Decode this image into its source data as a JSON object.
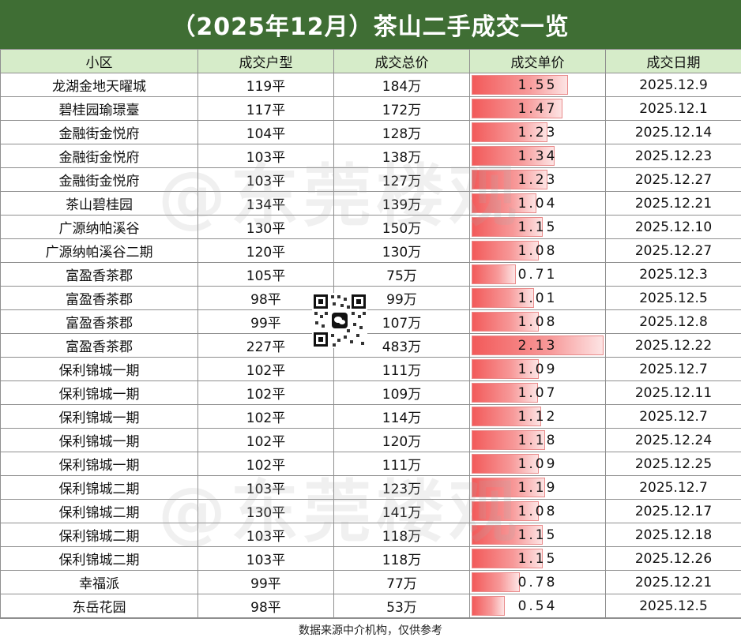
{
  "title": "（2025年12月）茶山二手成交一览",
  "headers": [
    "小区",
    "成交户型",
    "成交总价",
    "成交单价",
    "成交日期"
  ],
  "max_unit_price": 2.13,
  "rows": [
    {
      "community": "龙湖金地天曜城",
      "size": "119平",
      "total": "184万",
      "unit": "1.55",
      "date": "2025.12.9"
    },
    {
      "community": "碧桂园瑜璟臺",
      "size": "117平",
      "total": "172万",
      "unit": "1.47",
      "date": "2025.12.1"
    },
    {
      "community": "金融街金悦府",
      "size": "104平",
      "total": "128万",
      "unit": "1.23",
      "date": "2025.12.14"
    },
    {
      "community": "金融街金悦府",
      "size": "103平",
      "total": "138万",
      "unit": "1.34",
      "date": "2025.12.23"
    },
    {
      "community": "金融街金悦府",
      "size": "103平",
      "total": "127万",
      "unit": "1.23",
      "date": "2025.12.27"
    },
    {
      "community": "茶山碧桂园",
      "size": "134平",
      "total": "139万",
      "unit": "1.04",
      "date": "2025.12.21"
    },
    {
      "community": "广源纳帕溪谷",
      "size": "130平",
      "total": "150万",
      "unit": "1.15",
      "date": "2025.12.10"
    },
    {
      "community": "广源纳帕溪谷二期",
      "size": "120平",
      "total": "130万",
      "unit": "1.08",
      "date": "2025.12.27"
    },
    {
      "community": "富盈香茶郡",
      "size": "105平",
      "total": "75万",
      "unit": "0.71",
      "date": "2025.12.3"
    },
    {
      "community": "富盈香茶郡",
      "size": "98平",
      "total": "99万",
      "unit": "1.01",
      "date": "2025.12.5"
    },
    {
      "community": "富盈香茶郡",
      "size": "99平",
      "total": "107万",
      "unit": "1.08",
      "date": "2025.12.8"
    },
    {
      "community": "富盈香茶郡",
      "size": "227平",
      "total": "483万",
      "unit": "2.13",
      "date": "2025.12.22"
    },
    {
      "community": "保利锦城一期",
      "size": "102平",
      "total": "111万",
      "unit": "1.09",
      "date": "2025.12.7"
    },
    {
      "community": "保利锦城一期",
      "size": "102平",
      "total": "109万",
      "unit": "1.07",
      "date": "2025.12.11"
    },
    {
      "community": "保利锦城一期",
      "size": "102平",
      "total": "114万",
      "unit": "1.12",
      "date": "2025.12.7"
    },
    {
      "community": "保利锦城一期",
      "size": "102平",
      "total": "120万",
      "unit": "1.18",
      "date": "2025.12.24"
    },
    {
      "community": "保利锦城一期",
      "size": "102平",
      "total": "111万",
      "unit": "1.09",
      "date": "2025.12.25"
    },
    {
      "community": "保利锦城二期",
      "size": "103平",
      "total": "123万",
      "unit": "1.19",
      "date": "2025.12.7"
    },
    {
      "community": "保利锦城二期",
      "size": "130平",
      "total": "141万",
      "unit": "1.08",
      "date": "2025.12.17"
    },
    {
      "community": "保利锦城二期",
      "size": "103平",
      "total": "118万",
      "unit": "1.15",
      "date": "2025.12.18"
    },
    {
      "community": "保利锦城二期",
      "size": "103平",
      "total": "118万",
      "unit": "1.15",
      "date": "2025.12.26"
    },
    {
      "community": "幸福派",
      "size": "99平",
      "total": "77万",
      "unit": "0.78",
      "date": "2025.12.21"
    },
    {
      "community": "东岳花园",
      "size": "98平",
      "total": "53万",
      "unit": "0.54",
      "date": "2025.12.5"
    }
  ],
  "watermark": "@东莞楼观",
  "footer": "数据来源中介机构，仅供参考",
  "colors": {
    "title_bg": "#3f6e34",
    "header_bg": "#d6ecc9",
    "bar": "#f25a5a"
  }
}
